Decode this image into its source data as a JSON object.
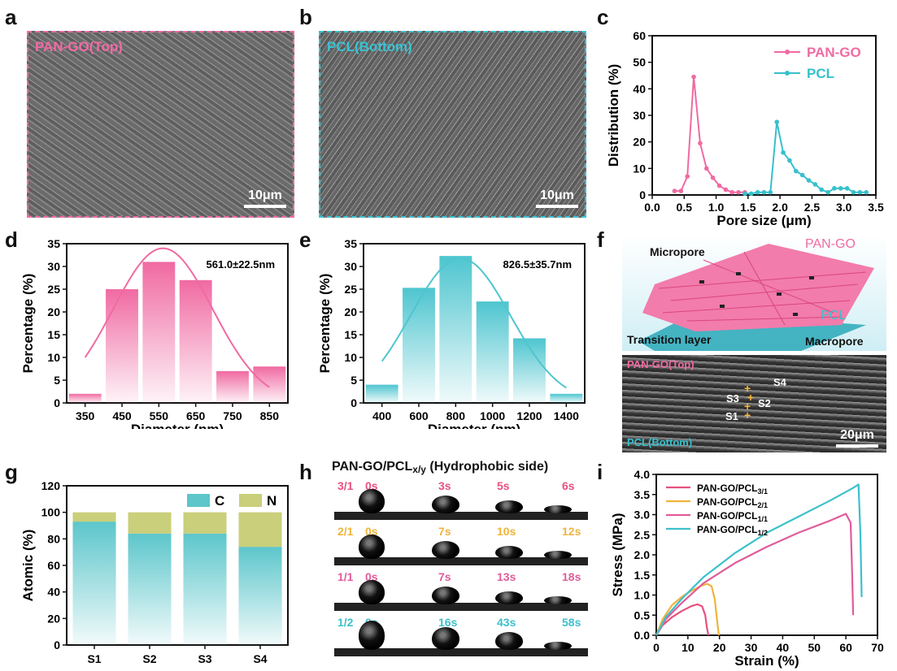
{
  "panels": {
    "a": "a",
    "b": "b",
    "c": "c",
    "d": "d",
    "e": "e",
    "f": "f",
    "g": "g",
    "h": "h",
    "i": "i"
  },
  "sem_a": {
    "label": "PAN-GO(Top)",
    "scale": "10μm"
  },
  "sem_b": {
    "label": "PCL(Bottom)",
    "scale": "10μm"
  },
  "schematic": {
    "micropore": "Micropore",
    "pan_go": "PAN-GO",
    "pcl": "PCL",
    "transition": "Transition layer",
    "macropore": "Macropore"
  },
  "cross_section": {
    "top": "PAN-GO(Top)",
    "bottom": "PCL(Bottom)",
    "s1": "S1",
    "s2": "S2",
    "s3": "S3",
    "s4": "S4",
    "scale": "20μm"
  },
  "contact_angle": {
    "title": "PAN-GO/PCL",
    "title_sub": "x/y",
    "title_suffix": " (Hydrophobic side)",
    "rows": [
      {
        "ratio": "3/1",
        "times": [
          "0s",
          "3s",
          "5s",
          "6s"
        ],
        "color": "#e8507f"
      },
      {
        "ratio": "2/1",
        "times": [
          "0s",
          "7s",
          "10s",
          "12s"
        ],
        "color": "#f0b43c"
      },
      {
        "ratio": "1/1",
        "times": [
          "0s",
          "7s",
          "13s",
          "18s"
        ],
        "color": "#e05c9a"
      },
      {
        "ratio": "1/2",
        "times": [
          "0s",
          "16s",
          "43s",
          "58s"
        ],
        "color": "#3cc0cc"
      }
    ]
  },
  "chart_data": [
    {
      "id": "c",
      "type": "line",
      "xlabel": "Pore size (μm)",
      "ylabel": "Distribution (%)",
      "xlim": [
        0,
        3.5
      ],
      "ylim": [
        0,
        60
      ],
      "xticks": [
        "0.0",
        "0.5",
        "1.0",
        "1.5",
        "2.0",
        "2.5",
        "3.0",
        "3.5"
      ],
      "yticks": [
        "0",
        "10",
        "20",
        "30",
        "40",
        "50",
        "60"
      ],
      "legend": "top-right",
      "series": [
        {
          "name": "PAN-GO",
          "color": "#f06aa2",
          "x": [
            0.35,
            0.45,
            0.55,
            0.65,
            0.75,
            0.85,
            0.95,
            1.05,
            1.15,
            1.25,
            1.35,
            1.45
          ],
          "y": [
            1.5,
            1.5,
            7,
            44.5,
            19.5,
            10,
            6.5,
            3.5,
            2,
            1,
            1,
            1
          ]
        },
        {
          "name": "PCL",
          "color": "#37c0cc",
          "x": [
            1.45,
            1.55,
            1.65,
            1.75,
            1.85,
            1.95,
            2.05,
            2.15,
            2.25,
            2.35,
            2.45,
            2.55,
            2.65,
            2.75,
            2.85,
            2.95,
            3.05,
            3.15,
            3.25,
            3.35
          ],
          "y": [
            0.5,
            0.5,
            1,
            1,
            1,
            27.5,
            16,
            13,
            9,
            7.5,
            5.5,
            4,
            2,
            1,
            2.5,
            2.5,
            2.5,
            1,
            1,
            1
          ]
        }
      ]
    },
    {
      "id": "d",
      "type": "bar",
      "xlabel": "Diameter (nm)",
      "ylabel": "Percentage (%)",
      "categories": [
        "350",
        "450",
        "550",
        "650",
        "750",
        "850"
      ],
      "values": [
        2,
        25,
        31,
        27,
        7,
        8
      ],
      "ylim": [
        0,
        35
      ],
      "yticks": [
        "0",
        "5",
        "10",
        "15",
        "20",
        "25",
        "30",
        "35"
      ],
      "annotation": "561.0±22.5nm",
      "fit_mean": 561,
      "fit_peak": 34,
      "fit_sigma": 135,
      "color": "#f06aa2"
    },
    {
      "id": "e",
      "type": "bar",
      "xlabel": "Diameter (nm)",
      "ylabel": "Percentage (%)",
      "categories": [
        "400",
        "600",
        "800",
        "1000",
        "1200",
        "1400"
      ],
      "values": [
        4,
        25.3,
        32.3,
        22.3,
        14.2,
        2
      ],
      "ylim": [
        0,
        35
      ],
      "yticks": [
        "0",
        "5",
        "10",
        "15",
        "20",
        "25",
        "30",
        "35"
      ],
      "annotation": "826.5±35.7nm",
      "fit_mean": 826,
      "fit_peak": 31.8,
      "fit_sigma": 270,
      "color": "#4ec5cf"
    },
    {
      "id": "g",
      "type": "bar",
      "xlabel": "",
      "ylabel": "Atomic (%)",
      "categories": [
        "S1",
        "S2",
        "S3",
        "S4"
      ],
      "series": [
        {
          "name": "C",
          "values": [
            93,
            84,
            84,
            74
          ],
          "color": "#5cc6cb"
        },
        {
          "name": "N",
          "values": [
            7,
            16,
            16,
            26
          ],
          "color": "#c9cf7a"
        }
      ],
      "ylim": [
        0,
        120
      ],
      "yticks": [
        "0",
        "20",
        "40",
        "60",
        "80",
        "100",
        "120"
      ],
      "legend": "top"
    },
    {
      "id": "i",
      "type": "line",
      "xlabel": "Strain (%)",
      "ylabel": "Stress (MPa)",
      "xlim": [
        0,
        70
      ],
      "ylim": [
        0,
        4
      ],
      "xticks": [
        "0",
        "10",
        "20",
        "30",
        "40",
        "50",
        "60",
        "70"
      ],
      "yticks": [
        "0.0",
        "0.5",
        "1.0",
        "1.5",
        "2.0",
        "2.5",
        "3.0",
        "3.5",
        "4.0"
      ],
      "legend": "top-left",
      "series": [
        {
          "name": "PAN-GO/PCL",
          "sub": "3/1",
          "color": "#e8507f",
          "x": [
            0,
            2,
            5,
            8,
            11,
            13,
            14.5,
            15.5,
            16,
            16.5
          ],
          "y": [
            0,
            0.25,
            0.45,
            0.6,
            0.72,
            0.77,
            0.72,
            0.5,
            0.2,
            0
          ]
        },
        {
          "name": "PAN-GO/PCL",
          "sub": "2/1",
          "color": "#f0b43c",
          "x": [
            0,
            2,
            5,
            8,
            11,
            14,
            16,
            17.5,
            18.5,
            19.2,
            19.8
          ],
          "y": [
            0,
            0.4,
            0.75,
            0.95,
            1.1,
            1.22,
            1.28,
            1.22,
            0.9,
            0.4,
            0
          ]
        },
        {
          "name": "PAN-GO/PCL",
          "sub": "1/1",
          "color": "#e05c9a",
          "x": [
            0,
            3,
            8,
            15,
            25,
            35,
            45,
            55,
            60,
            61.5,
            62,
            62.3
          ],
          "y": [
            0,
            0.4,
            0.8,
            1.3,
            1.8,
            2.2,
            2.55,
            2.85,
            3.02,
            2.8,
            1.5,
            0.5
          ]
        },
        {
          "name": "PAN-GO/PCL",
          "sub": "1/2",
          "color": "#3cc0cc",
          "x": [
            0,
            3,
            8,
            15,
            25,
            35,
            45,
            55,
            62,
            64,
            64.6,
            65
          ],
          "y": [
            0,
            0.45,
            0.9,
            1.45,
            2.05,
            2.55,
            2.95,
            3.35,
            3.65,
            3.75,
            2.5,
            0.95
          ]
        }
      ]
    }
  ]
}
